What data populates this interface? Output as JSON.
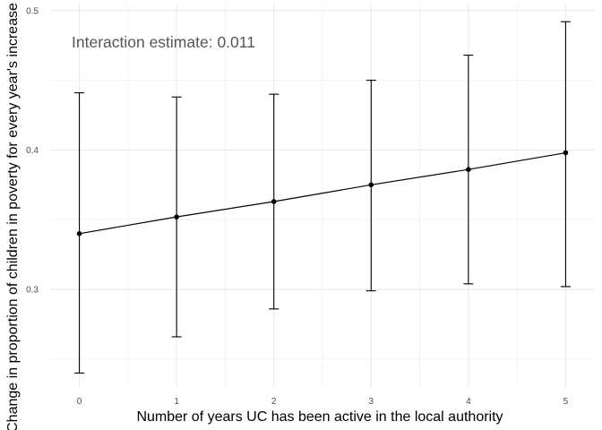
{
  "chart_data": {
    "type": "line",
    "title": "",
    "xlabel": "Number of years UC has been active in the local authority",
    "ylabel": "Change in proportion of children in poverty for every year's increase",
    "annotation": "Interaction estimate: 0.011",
    "x_ticks": [
      "0",
      "1",
      "2",
      "3",
      "4",
      "5"
    ],
    "y_ticks": [
      "0.3",
      "0.4",
      "0.5"
    ],
    "xlim": [
      -0.3,
      5.3
    ],
    "ylim": [
      0.23,
      0.505
    ],
    "grid": true,
    "series": [
      {
        "x": [
          0,
          1,
          2,
          3,
          4,
          5
        ],
        "y": [
          0.34,
          0.352,
          0.363,
          0.375,
          0.386,
          0.398
        ],
        "lower": [
          0.24,
          0.266,
          0.286,
          0.299,
          0.304,
          0.302
        ],
        "upper": [
          0.441,
          0.438,
          0.44,
          0.45,
          0.468,
          0.492
        ]
      }
    ],
    "colors": {
      "line": "#000000",
      "grid": "#ebebeb",
      "text": "#4d4d4d"
    }
  }
}
